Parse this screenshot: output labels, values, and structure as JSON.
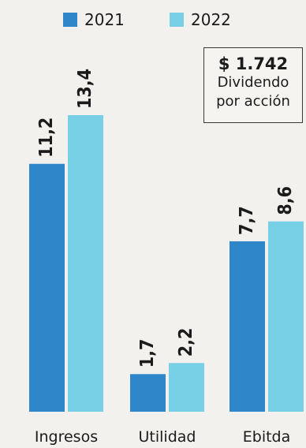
{
  "chart_data": {
    "type": "bar",
    "categories": [
      "Ingresos",
      "Utilidad",
      "Ebitda"
    ],
    "series": [
      {
        "name": "2021",
        "values": [
          11.2,
          1.7,
          7.7
        ],
        "labels": [
          "11,2",
          "1,7",
          "7,7"
        ],
        "color": "#2f86c8"
      },
      {
        "name": "2022",
        "values": [
          13.4,
          2.2,
          8.6
        ],
        "labels": [
          "13,4",
          "2,2",
          "8,6"
        ],
        "color": "#78d0e6"
      }
    ],
    "ylim": [
      0,
      13.4
    ],
    "legend_position": "top-left",
    "value_labels": "above bars, rotated vertical"
  },
  "callout": {
    "value": "$ 1.742",
    "label": "Dividendo por acción"
  }
}
